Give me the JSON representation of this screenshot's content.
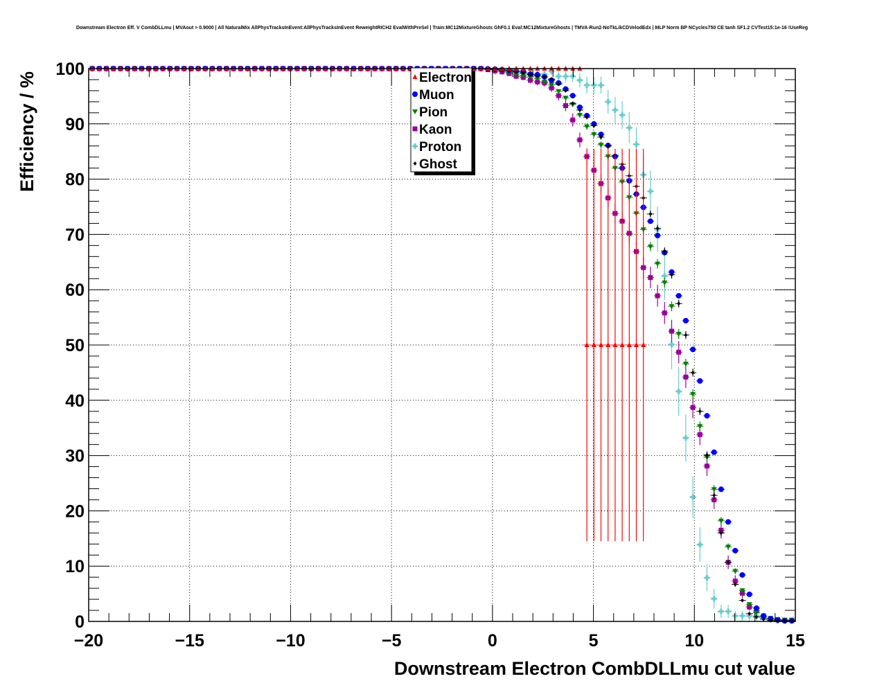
{
  "chart_data": {
    "type": "scatter",
    "title": "Downstream Electron Eff. V CombDLLmu | MVAout > 0.9000 | All NaturalMix AllPhysTracksInEvent:AllPhysTracksInEvent ReweightRICH2 EvalWithPreSel | Train:MC12MixtureGhosts GhF0.1 Eval:MC12MixtureGhosts | TMVA-Run2-NoTkLikCDVelodEdx | MLP Norm BP NCycles750 CE tanh SF1.2 CVTest15:1e-16 !UseReg",
    "xlabel": "Downstream Electron CombDLLmu cut value",
    "ylabel": "Efficiency / %",
    "xlim": [
      -20,
      15
    ],
    "ylim": [
      0,
      100
    ],
    "grid": true,
    "legend_position": "top-center",
    "x_ticks": [
      -20,
      -15,
      -10,
      -5,
      0,
      5,
      10,
      15
    ],
    "x_tick_labels": [
      "−20",
      "−15",
      "−10",
      "−5",
      "0",
      "5",
      "10",
      "15"
    ],
    "y_ticks": [
      0,
      10,
      20,
      30,
      40,
      50,
      60,
      70,
      80,
      90,
      100
    ],
    "y_tick_labels": [
      "0",
      "10",
      "20",
      "30",
      "40",
      "50",
      "60",
      "70",
      "80",
      "90",
      "100"
    ],
    "bins": {
      "first_center": -19.825,
      "width": 0.35,
      "count": 100
    },
    "tail_start_bin": 56,
    "series": [
      {
        "name": "Electron",
        "color": "#ff0000",
        "marker": "triangle-up",
        "plateau": 100,
        "last_bin": 69,
        "tail": [],
        "extra_points": [
          {
            "x": 4.675,
            "y": 50,
            "err": 35.5
          },
          {
            "x": 5.025,
            "y": 50,
            "err": 35.5
          },
          {
            "x": 5.375,
            "y": 50,
            "err": 35.5
          },
          {
            "x": 5.725,
            "y": 50,
            "err": 35.5
          },
          {
            "x": 6.075,
            "y": 50,
            "err": 35.5
          },
          {
            "x": 6.425,
            "y": 50,
            "err": 35.5
          },
          {
            "x": 6.775,
            "y": 50,
            "err": 35.5
          },
          {
            "x": 7.125,
            "y": 50,
            "err": 35.5
          },
          {
            "x": 7.475,
            "y": 50,
            "err": 35.5
          }
        ]
      },
      {
        "name": "Muon",
        "color": "#0000ff",
        "marker": "circle",
        "plateau": 100,
        "last_bin": 99,
        "tail": [
          99.95,
          99.9,
          99.8,
          99.7,
          99.6,
          99.5,
          99.0,
          98.9,
          98.5,
          97.9,
          97.4,
          96.3,
          95.1,
          93.0,
          91.5,
          90.0,
          88.1,
          86.1,
          84.1,
          82.0,
          79.7,
          77.3,
          74.9,
          72.4,
          69.8,
          66.7,
          63.2,
          58.9,
          54.4,
          49.2,
          43.5,
          37.2,
          30.6,
          23.9,
          18.0,
          12.8,
          8.4,
          4.9,
          2.4,
          1.0,
          0.5,
          0.25,
          0.1,
          0.1
        ],
        "err": 0.4
      },
      {
        "name": "Pion",
        "color": "#008000",
        "marker": "triangle-down",
        "plateau": 100,
        "last_bin": 99,
        "tail": [
          99.9,
          99.8,
          99.6,
          99.3,
          99.0,
          98.7,
          98.5,
          98.2,
          97.6,
          97.1,
          95.9,
          94.7,
          93.5,
          91.6,
          89.5,
          88.1,
          86.2,
          84.1,
          82.0,
          79.5,
          76.7,
          73.8,
          70.9,
          67.8,
          64.7,
          61.3,
          57.0,
          52.0,
          46.6,
          41.1,
          35.3,
          29.7,
          23.9,
          18.2,
          13.5,
          9.1,
          5.6,
          3.1,
          1.6,
          0.8,
          0.6,
          0.4,
          0.3,
          0.3
        ],
        "err": 0.9
      },
      {
        "name": "Kaon",
        "color": "#990099",
        "marker": "square",
        "plateau": 100,
        "last_bin": 99,
        "tail": [
          99.8,
          99.6,
          99.4,
          99.1,
          98.6,
          98.4,
          97.9,
          97.6,
          97.4,
          96.5,
          95.1,
          93.3,
          90.7,
          87.1,
          84.1,
          81.6,
          79.2,
          76.6,
          73.8,
          72.4,
          70.2,
          66.9,
          64.0,
          62.2,
          58.9,
          55.8,
          52.5,
          48.7,
          44.2,
          38.7,
          33.8,
          28.1,
          22.0,
          16.5,
          10.7,
          7.3,
          5.1,
          2.6,
          1.9,
          1.0,
          0.5,
          0.3,
          0.2,
          0.2
        ],
        "err": 2.0
      },
      {
        "name": "Proton",
        "color": "#66cccc",
        "marker": "cross",
        "plateau": 100,
        "last_bin": 99,
        "tail": [
          99.9,
          99.5,
          99.5,
          99.4,
          99.4,
          99.3,
          99.2,
          99.0,
          99.0,
          99.5,
          98.6,
          98.6,
          98.6,
          97.9,
          97.0,
          97.0,
          97.0,
          94.0,
          92.5,
          91.6,
          89.3,
          86.3,
          80.8,
          77.8,
          70.9,
          62.5,
          50.1,
          41.6,
          33.2,
          22.5,
          13.9,
          7.9,
          4.1,
          1.8,
          1.8,
          1.0,
          1.0,
          1.0,
          1.0,
          0.6,
          0.3,
          0.1,
          0.1,
          0.1
        ],
        "err": 4.5
      },
      {
        "name": "Ghost",
        "color": "#000000",
        "marker": "diamond",
        "plateau": 100,
        "last_bin": 99,
        "tail": [
          99.9,
          99.8,
          99.7,
          99.6,
          99.4,
          99.2,
          98.9,
          98.7,
          98.5,
          98.1,
          97.2,
          96.0,
          93.7,
          92.5,
          91.2,
          89.7,
          87.6,
          86.0,
          84.3,
          82.7,
          80.6,
          78.7,
          76.6,
          73.7,
          71.1,
          67.0,
          62.7,
          57.5,
          51.8,
          45.0,
          38.0,
          30.1,
          22.8,
          16.0,
          10.7,
          6.7,
          3.8,
          1.4,
          0.8,
          0.4,
          0.2,
          0.1,
          0.1,
          0.1
        ],
        "err": 0.7
      }
    ]
  }
}
